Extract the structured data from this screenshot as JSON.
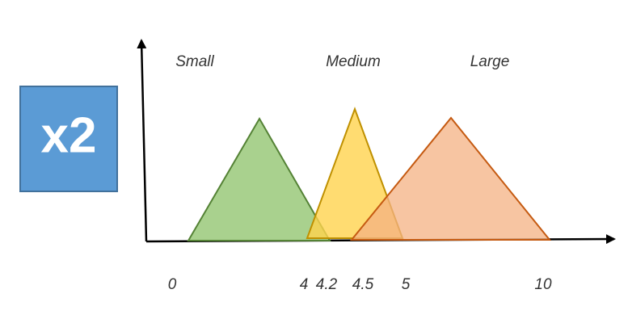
{
  "badge": {
    "label": "x2"
  },
  "sets": [
    {
      "label": "Small"
    },
    {
      "label": "Medium"
    },
    {
      "label": "Large"
    }
  ],
  "axis": {
    "tick_labels": [
      "0",
      "4",
      "4.2",
      "4.5",
      "5",
      "10"
    ]
  }
}
